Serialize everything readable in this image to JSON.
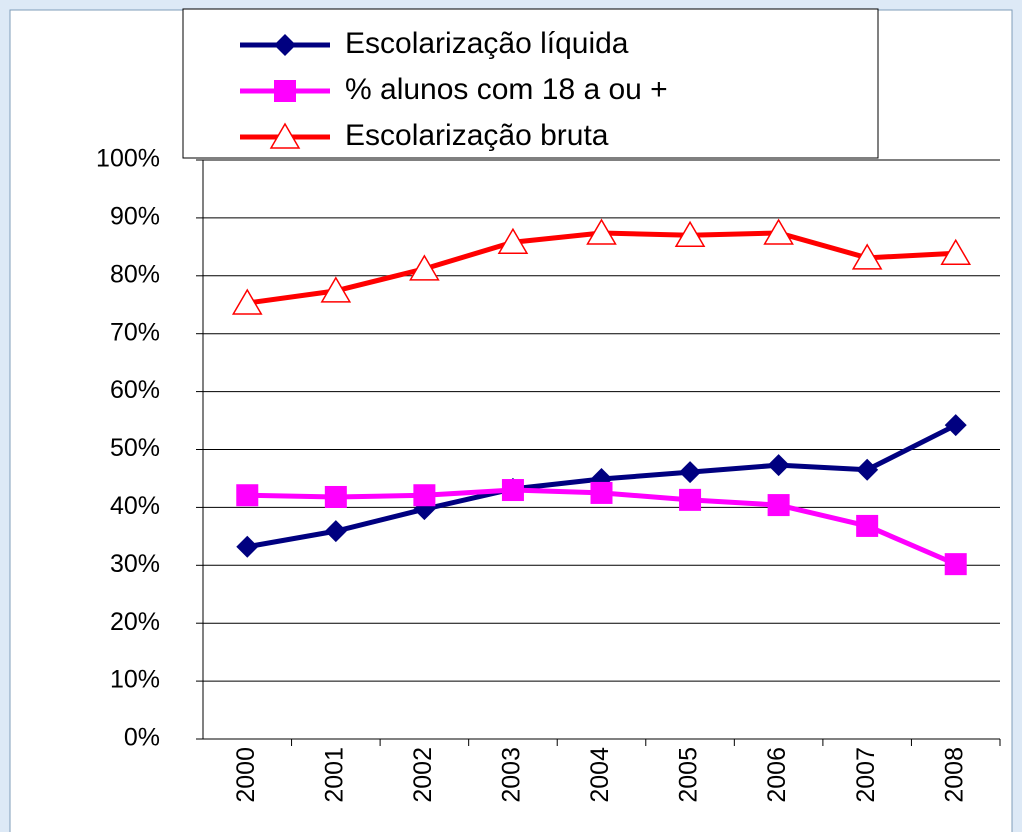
{
  "chart_data": {
    "type": "line",
    "categories": [
      "2000",
      "2001",
      "2002",
      "2003",
      "2004",
      "2005",
      "2006",
      "2007",
      "2008"
    ],
    "series": [
      {
        "name": "Escolarização líquida",
        "color": "#000080",
        "marker": "diamond",
        "values": [
          33.2,
          35.9,
          39.7,
          43.2,
          44.9,
          46.1,
          47.3,
          46.5,
          54.2
        ]
      },
      {
        "name": "% alunos com 18 a ou +",
        "color": "#ff00ff",
        "marker": "square",
        "values": [
          42.1,
          41.8,
          42.1,
          43.0,
          42.5,
          41.3,
          40.4,
          36.8,
          30.2
        ]
      },
      {
        "name": "Escolarização bruta",
        "color": "#ff0000",
        "marker": "triangle",
        "values": [
          75.3,
          77.4,
          81.2,
          85.8,
          87.4,
          87.0,
          87.4,
          83.1,
          83.9
        ]
      }
    ],
    "ylim": [
      0,
      100
    ],
    "yticks": [
      {
        "value": 0,
        "label": "0%"
      },
      {
        "value": 10,
        "label": "10%"
      },
      {
        "value": 20,
        "label": "20%"
      },
      {
        "value": 30,
        "label": "30%"
      },
      {
        "value": 40,
        "label": "40%"
      },
      {
        "value": 50,
        "label": "50%"
      },
      {
        "value": 60,
        "label": "60%"
      },
      {
        "value": 70,
        "label": "70%"
      },
      {
        "value": 80,
        "label": "80%"
      },
      {
        "value": 90,
        "label": "90%"
      },
      {
        "value": 100,
        "label": "100%"
      }
    ],
    "grid": true
  }
}
